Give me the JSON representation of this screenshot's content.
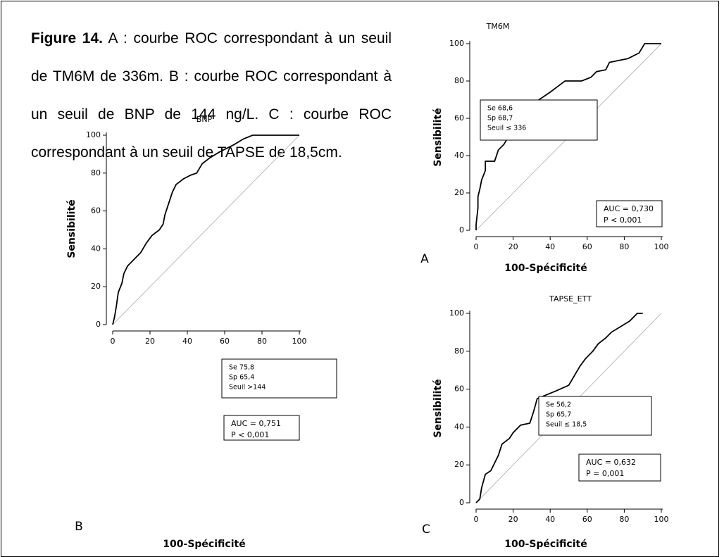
{
  "caption": {
    "label": "Figure 14.",
    "text": "A : courbe ROC correspondant à un seuil de TM6M de 336m. B : courbe ROC correspondant à un seuil de BNP de 144 ng/L. C : courbe ROC correspondant à un seuil de TAPSE de 18,5cm."
  },
  "chart_data": [
    {
      "type": "line",
      "panel": "A",
      "title": "TM6M",
      "xlabel": "100-Spécificité",
      "ylabel": "Sensibilité",
      "color": "#000000",
      "x": [
        0,
        0,
        1,
        1,
        2,
        3,
        5,
        5,
        10,
        12,
        15,
        18,
        24,
        28,
        29,
        32,
        34,
        37,
        40,
        44,
        48,
        57,
        62,
        65,
        70,
        72,
        82,
        88,
        91,
        100
      ],
      "values": [
        0,
        3,
        12,
        18,
        22,
        27,
        32,
        37,
        37,
        43,
        46,
        51,
        55,
        58,
        62,
        67,
        70,
        72,
        74,
        77,
        80,
        80,
        82,
        85,
        86,
        90,
        92,
        95,
        100,
        100
      ],
      "xlim": [
        0,
        100
      ],
      "ylim": [
        0,
        100
      ],
      "xticks": [
        0,
        20,
        40,
        60,
        80,
        100
      ],
      "yticks": [
        0,
        20,
        40,
        60,
        80,
        100
      ],
      "annotation": [
        "Se 68,6",
        "Sp 68,7",
        "Seuil ≤ 336"
      ],
      "auc_box": [
        "AUC = 0,730",
        "P < 0,001"
      ]
    },
    {
      "type": "line",
      "panel": "B",
      "title": "BNP",
      "xlabel": "100-Spécificité",
      "ylabel": "Sensibilité",
      "color": "#000000",
      "x": [
        0,
        1,
        2,
        3,
        5,
        6,
        8,
        12,
        15,
        18,
        21,
        25,
        27,
        28,
        30,
        32,
        34,
        38,
        42,
        45,
        48,
        52,
        57,
        61,
        65,
        70,
        75,
        100
      ],
      "values": [
        0,
        4,
        10,
        17,
        22,
        27,
        31,
        35,
        38,
        43,
        47,
        50,
        53,
        58,
        64,
        70,
        74,
        77,
        79,
        80,
        85,
        88,
        91,
        93,
        95,
        98,
        100,
        100
      ],
      "xlim": [
        0,
        100
      ],
      "ylim": [
        0,
        100
      ],
      "xticks": [
        0,
        20,
        40,
        60,
        80,
        100
      ],
      "yticks": [
        0,
        20,
        40,
        60,
        80,
        100
      ],
      "annotation": [
        "Se 75,8",
        "Sp 65,4",
        "Seuil >144"
      ],
      "auc_box": [
        "AUC = 0,751",
        "P < 0,001"
      ]
    },
    {
      "type": "line",
      "panel": "C",
      "title": "TAPSE_ETT",
      "xlabel": "100-Spécificité",
      "ylabel": "Sensibilité",
      "color": "#000000",
      "x": [
        0,
        2,
        3,
        5,
        8,
        10,
        12,
        14,
        18,
        20,
        24,
        29,
        31,
        33,
        38,
        43,
        50,
        53,
        56,
        59,
        63,
        66,
        70,
        73,
        78,
        83,
        87,
        90
      ],
      "values": [
        0,
        2,
        8,
        15,
        17,
        21,
        25,
        31,
        34,
        37,
        41,
        42,
        48,
        55,
        57,
        59,
        62,
        67,
        72,
        76,
        80,
        84,
        87,
        90,
        93,
        96,
        100,
        100
      ],
      "xlim": [
        0,
        100
      ],
      "ylim": [
        0,
        100
      ],
      "xticks": [
        0,
        20,
        40,
        60,
        80,
        100
      ],
      "yticks": [
        0,
        20,
        40,
        60,
        80,
        100
      ],
      "annotation": [
        "Se 56,2",
        "Sp 65,7",
        "Seuil ≤ 18,5"
      ],
      "auc_box": [
        "AUC = 0,632",
        "P = 0,001"
      ]
    }
  ]
}
